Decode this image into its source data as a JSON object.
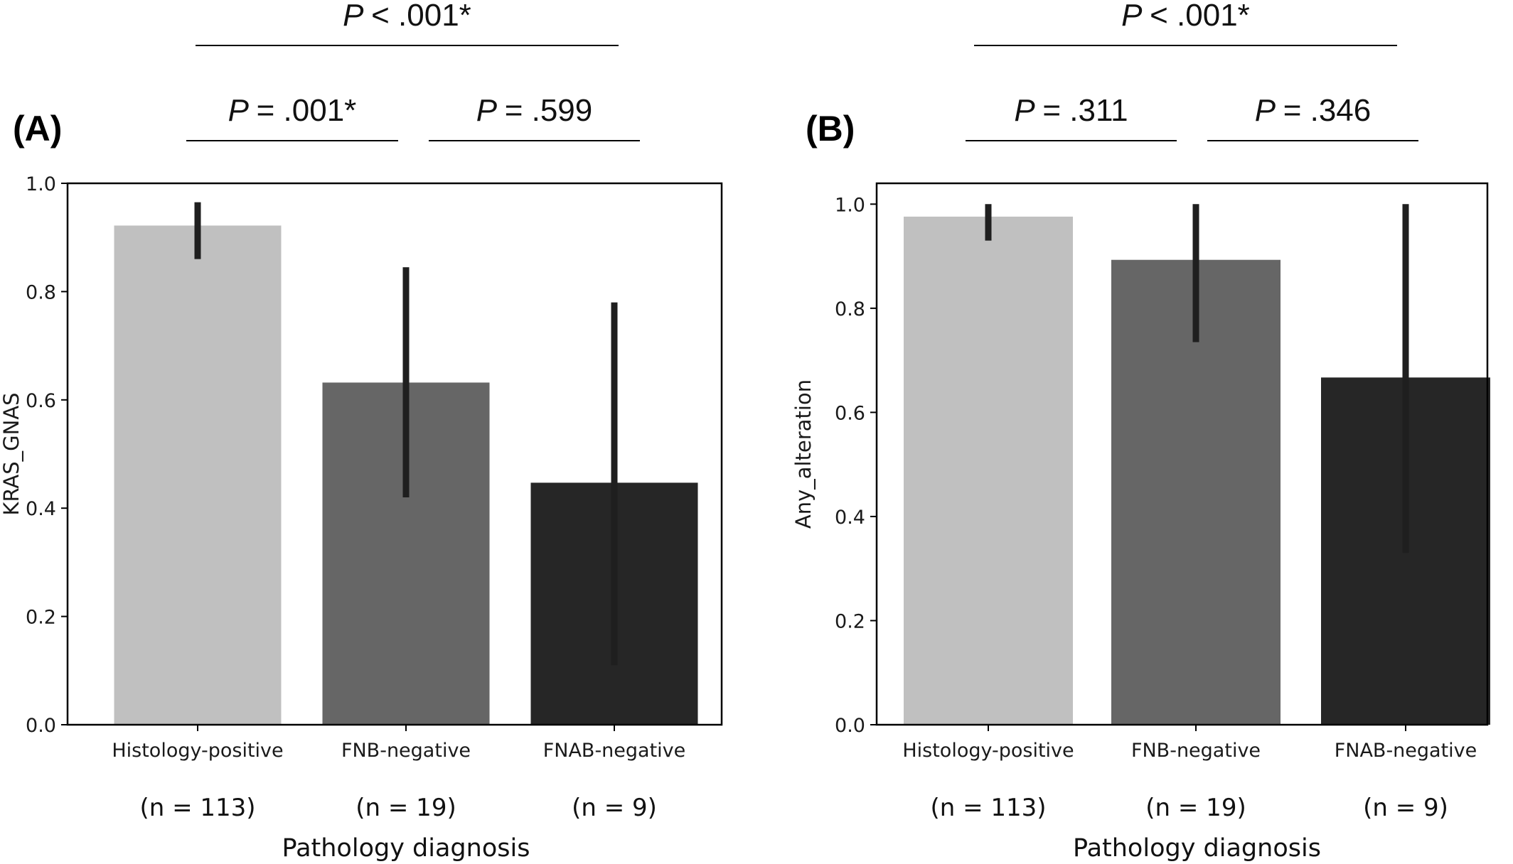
{
  "chart_data": [
    {
      "type": "bar",
      "panel_label": "(A)",
      "categories": [
        "Histology-positive",
        "FNB-negative",
        "FNAB-negative"
      ],
      "sample_sizes": [
        "(n = 113)",
        "(n = 19)",
        "(n = 9)"
      ],
      "values": [
        0.922,
        0.632,
        0.447
      ],
      "error_bars": [
        [
          0.86,
          0.965
        ],
        [
          0.42,
          0.845
        ],
        [
          0.11,
          0.78
        ]
      ],
      "bar_colors": [
        "#c0c0c0",
        "#666666",
        "#262626"
      ],
      "xlabel": "Pathology diagnosis",
      "ylabel": "KRAS_GNAS",
      "ylim": [
        0.0,
        1.0
      ],
      "yticks": [
        0.0,
        0.2,
        0.4,
        0.6,
        0.8,
        1.0
      ],
      "ytick_labels": [
        "0.0",
        "0.2",
        "0.4",
        "0.6",
        "0.8",
        "1.0"
      ],
      "comparisons": [
        {
          "from": 0,
          "to": 2,
          "label": "< .001*",
          "level": 2
        },
        {
          "from": 0,
          "to": 1,
          "label": "= .001*",
          "level": 1
        },
        {
          "from": 1,
          "to": 2,
          "label": "= .599",
          "level": 1
        }
      ],
      "grid": false
    },
    {
      "type": "bar",
      "panel_label": "(B)",
      "categories": [
        "Histology-positive",
        "FNB-negative",
        "FNAB-negative"
      ],
      "sample_sizes": [
        "(n = 113)",
        "(n = 19)",
        "(n = 9)"
      ],
      "values": [
        0.976,
        0.893,
        0.667
      ],
      "error_bars": [
        [
          0.93,
          1.0
        ],
        [
          0.735,
          1.0
        ],
        [
          0.33,
          1.0
        ]
      ],
      "bar_colors": [
        "#c0c0c0",
        "#666666",
        "#262626"
      ],
      "xlabel": "Pathology diagnosis",
      "ylabel": "Any_alteration",
      "ylim": [
        0.0,
        1.04
      ],
      "yticks": [
        0.0,
        0.2,
        0.4,
        0.6,
        0.8,
        1.0
      ],
      "ytick_labels": [
        "0.0",
        "0.2",
        "0.4",
        "0.6",
        "0.8",
        "1.0"
      ],
      "comparisons": [
        {
          "from": 0,
          "to": 2,
          "label": "< .001*",
          "level": 2
        },
        {
          "from": 0,
          "to": 1,
          "label": "= .311",
          "level": 1
        },
        {
          "from": 1,
          "to": 2,
          "label": "= .346",
          "level": 1
        }
      ],
      "grid": false
    }
  ],
  "p_symbol": "P",
  "error_bar_color": "#1f1f1f"
}
